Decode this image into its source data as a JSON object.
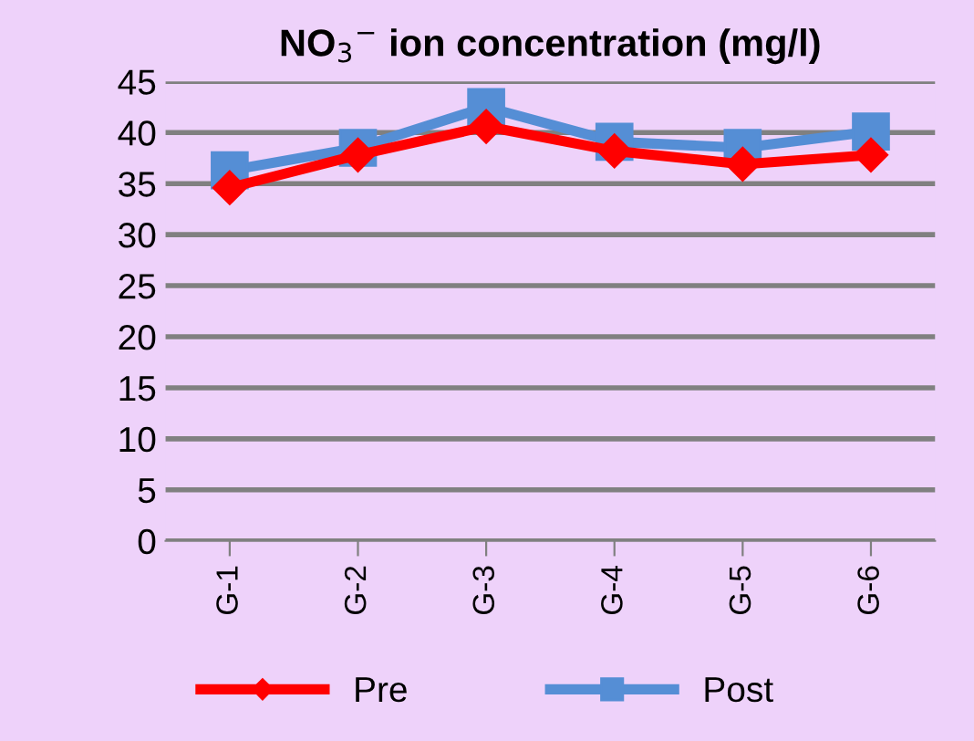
{
  "chart_data": {
    "type": "line",
    "title": "NO$_{3}$$^{−}$ ion concentration (mg/l)",
    "categories": [
      "G-1",
      "G-2",
      "G-3",
      "G-4",
      "G-5",
      "G-6"
    ],
    "series": [
      {
        "name": "Pre",
        "color": "#ff0000",
        "marker": "diamond",
        "values": [
          34.6,
          37.8,
          40.6,
          38.2,
          36.9,
          37.8
        ]
      },
      {
        "name": "Post",
        "color": "#558ed5",
        "marker": "square",
        "values": [
          36.3,
          38.5,
          42.5,
          39.1,
          38.5,
          40.1
        ]
      }
    ],
    "ylim": [
      0,
      45
    ],
    "yticks": [
      0,
      5,
      10,
      15,
      20,
      25,
      30,
      35,
      40,
      45
    ],
    "grid": "y",
    "legend": "bottom"
  }
}
